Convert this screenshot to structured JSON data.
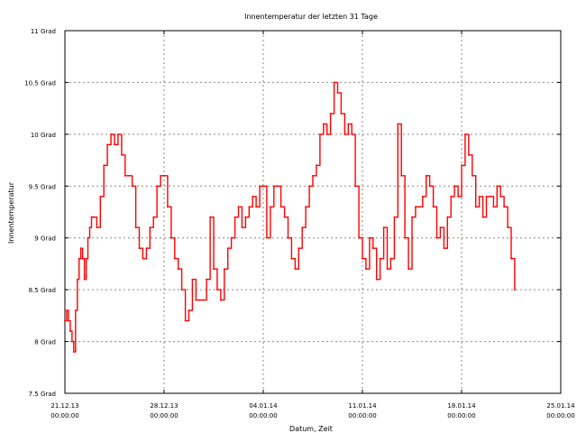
{
  "chart_data": {
    "type": "line",
    "title": "Innentemperatur der letzten 31 Tage",
    "xlabel": "Datum, Zeit",
    "ylabel": "Innentemperatur",
    "ylim": [
      7.5,
      11
    ],
    "xlim": [
      "2013-12-21 00:00",
      "2014-01-25 00:00"
    ],
    "grid": true,
    "line_color": "#ff0000",
    "yticks": [
      {
        "value": 7.5,
        "label": "7.5 Grad"
      },
      {
        "value": 8,
        "label": "8 Grad"
      },
      {
        "value": 8.5,
        "label": "8.5 Grad"
      },
      {
        "value": 9,
        "label": "9 Grad"
      },
      {
        "value": 9.5,
        "label": "9.5 Grad"
      },
      {
        "value": 10,
        "label": "10 Grad"
      },
      {
        "value": 10.5,
        "label": "10.5 Grad"
      },
      {
        "value": 11,
        "label": "11 Grad"
      }
    ],
    "xticks": [
      {
        "value": "2013-12-21 00:00",
        "date": "21.12.13",
        "time": "00:00:00"
      },
      {
        "value": "2013-12-28 00:00",
        "date": "28.12.13",
        "time": "00:00:00"
      },
      {
        "value": "2014-01-04 00:00",
        "date": "04.01.14",
        "time": "00:00:00"
      },
      {
        "value": "2014-01-11 00:00",
        "date": "11.01.14",
        "time": "00:00:00"
      },
      {
        "value": "2014-01-18 00:00",
        "date": "18.01.14",
        "time": "00:00:00"
      },
      {
        "value": "2014-01-25 00:00",
        "date": "25.01.14",
        "time": "00:00:00"
      }
    ],
    "series": [
      {
        "x": [
          "2013-12-21 00:00",
          "2013-12-21 03:00",
          "2013-12-21 06:00",
          "2013-12-21 09:00",
          "2013-12-21 12:00",
          "2013-12-21 15:00",
          "2013-12-21 18:00",
          "2013-12-21 21:00",
          "2013-12-22 00:00",
          "2013-12-22 03:00",
          "2013-12-22 06:00",
          "2013-12-22 09:00",
          "2013-12-22 12:00",
          "2013-12-22 15:00",
          "2013-12-22 18:00",
          "2013-12-22 21:00",
          "2013-12-23 00:00",
          "2013-12-23 06:00",
          "2013-12-23 12:00",
          "2013-12-23 18:00",
          "2013-12-24 00:00",
          "2013-12-24 06:00",
          "2013-12-24 12:00",
          "2013-12-24 18:00",
          "2013-12-25 00:00",
          "2013-12-25 06:00",
          "2013-12-25 12:00",
          "2013-12-25 18:00",
          "2013-12-26 00:00",
          "2013-12-26 06:00",
          "2013-12-26 12:00",
          "2013-12-26 18:00",
          "2013-12-27 00:00",
          "2013-12-27 06:00",
          "2013-12-27 12:00",
          "2013-12-27 18:00",
          "2013-12-28 00:00",
          "2013-12-28 06:00",
          "2013-12-28 12:00",
          "2013-12-28 18:00",
          "2013-12-29 00:00",
          "2013-12-29 06:00",
          "2013-12-29 12:00",
          "2013-12-29 18:00",
          "2013-12-30 00:00",
          "2013-12-30 06:00",
          "2013-12-30 12:00",
          "2013-12-30 18:00",
          "2013-12-31 00:00",
          "2013-12-31 06:00",
          "2013-12-31 12:00",
          "2013-12-31 18:00",
          "2014-01-01 00:00",
          "2014-01-01 06:00",
          "2014-01-01 12:00",
          "2014-01-01 18:00",
          "2014-01-02 00:00",
          "2014-01-02 06:00",
          "2014-01-02 12:00",
          "2014-01-02 18:00",
          "2014-01-03 00:00",
          "2014-01-03 06:00",
          "2014-01-03 12:00",
          "2014-01-03 18:00",
          "2014-01-04 00:00",
          "2014-01-04 06:00",
          "2014-01-04 12:00",
          "2014-01-04 18:00",
          "2014-01-05 00:00",
          "2014-01-05 06:00",
          "2014-01-05 12:00",
          "2014-01-05 18:00",
          "2014-01-06 00:00",
          "2014-01-06 06:00",
          "2014-01-06 12:00",
          "2014-01-06 18:00",
          "2014-01-07 00:00",
          "2014-01-07 06:00",
          "2014-01-07 12:00",
          "2014-01-07 18:00",
          "2014-01-08 00:00",
          "2014-01-08 06:00",
          "2014-01-08 12:00",
          "2014-01-08 18:00",
          "2014-01-09 00:00",
          "2014-01-09 06:00",
          "2014-01-09 12:00",
          "2014-01-09 18:00",
          "2014-01-10 00:00",
          "2014-01-10 06:00",
          "2014-01-10 12:00",
          "2014-01-10 18:00",
          "2014-01-11 00:00",
          "2014-01-11 06:00",
          "2014-01-11 12:00",
          "2014-01-11 18:00",
          "2014-01-12 00:00",
          "2014-01-12 06:00",
          "2014-01-12 12:00",
          "2014-01-12 18:00",
          "2014-01-13 00:00",
          "2014-01-13 06:00",
          "2014-01-13 12:00",
          "2014-01-13 18:00",
          "2014-01-14 00:00",
          "2014-01-14 06:00",
          "2014-01-14 12:00",
          "2014-01-14 18:00",
          "2014-01-15 00:00",
          "2014-01-15 06:00",
          "2014-01-15 12:00",
          "2014-01-15 18:00",
          "2014-01-16 00:00",
          "2014-01-16 06:00",
          "2014-01-16 12:00",
          "2014-01-16 18:00",
          "2014-01-17 00:00",
          "2014-01-17 06:00",
          "2014-01-17 12:00",
          "2014-01-17 18:00",
          "2014-01-18 00:00",
          "2014-01-18 06:00",
          "2014-01-18 12:00",
          "2014-01-18 18:00",
          "2014-01-19 00:00",
          "2014-01-19 06:00",
          "2014-01-19 12:00",
          "2014-01-19 18:00",
          "2014-01-20 00:00",
          "2014-01-20 06:00",
          "2014-01-20 12:00",
          "2014-01-20 18:00",
          "2014-01-21 00:00",
          "2014-01-21 06:00",
          "2014-01-21 12:00",
          "2014-01-21 18:00"
        ],
        "y": [
          8.2,
          8.3,
          8.2,
          8.1,
          8.0,
          7.9,
          8.3,
          8.6,
          8.8,
          8.9,
          8.8,
          8.6,
          8.8,
          9.0,
          9.1,
          9.2,
          9.2,
          9.1,
          9.4,
          9.7,
          9.9,
          10.0,
          9.9,
          10.0,
          9.8,
          9.6,
          9.6,
          9.5,
          9.1,
          8.9,
          8.8,
          8.9,
          9.1,
          9.2,
          9.5,
          9.6,
          9.6,
          9.3,
          9.0,
          8.8,
          8.7,
          8.5,
          8.2,
          8.3,
          8.6,
          8.4,
          8.4,
          8.4,
          8.6,
          9.2,
          8.7,
          8.5,
          8.4,
          8.7,
          8.9,
          9.0,
          9.2,
          9.3,
          9.1,
          9.2,
          9.3,
          9.4,
          9.3,
          9.5,
          9.5,
          9.0,
          9.3,
          9.5,
          9.5,
          9.3,
          9.2,
          9.0,
          8.8,
          8.7,
          8.9,
          9.1,
          9.3,
          9.5,
          9.6,
          9.7,
          10.0,
          10.1,
          10.0,
          10.2,
          10.5,
          10.4,
          10.2,
          10.0,
          10.1,
          10.0,
          9.5,
          9.0,
          8.8,
          8.7,
          9.0,
          8.9,
          8.6,
          8.8,
          9.1,
          8.7,
          8.8,
          9.2,
          10.1,
          9.6,
          9.0,
          8.7,
          9.2,
          9.3,
          9.3,
          9.4,
          9.6,
          9.5,
          9.3,
          9.0,
          9.1,
          8.9,
          9.2,
          9.4,
          9.5,
          9.4,
          9.7,
          10.0,
          9.8,
          9.6,
          9.3,
          9.4,
          9.2,
          9.4,
          9.4,
          9.3,
          9.5,
          9.4,
          9.3,
          9.1,
          8.8,
          8.5
        ]
      }
    ]
  }
}
